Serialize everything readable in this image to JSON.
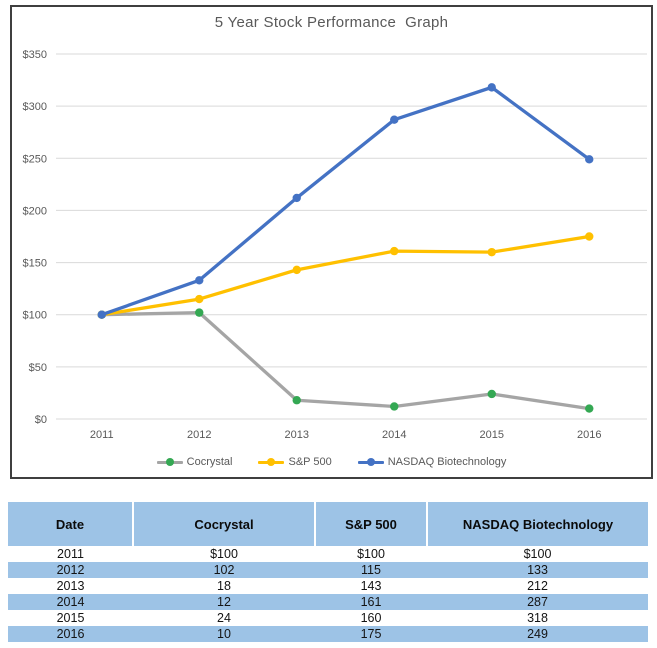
{
  "chart_data": {
    "type": "line",
    "title": "5 Year Stock Performance  Graph",
    "categories": [
      "2011",
      "2012",
      "2013",
      "2014",
      "2015",
      "2016"
    ],
    "series": [
      {
        "name": "Cocrystal",
        "values": [
          100,
          102,
          18,
          12,
          24,
          10
        ],
        "line_color": "#A5A5A5",
        "marker_color": "#34A853"
      },
      {
        "name": "S&P 500",
        "values": [
          100,
          115,
          143,
          161,
          160,
          175
        ],
        "line_color": "#FFC000",
        "marker_color": "#FFC000"
      },
      {
        "name": "NASDAQ Biotechnology",
        "values": [
          100,
          133,
          212,
          287,
          318,
          249
        ],
        "line_color": "#4472C4",
        "marker_color": "#4472C4"
      }
    ],
    "y_ticks": [
      0,
      50,
      100,
      150,
      200,
      250,
      300,
      350
    ],
    "y_tick_labels": [
      "$0",
      "$50",
      "$100",
      "$150",
      "$200",
      "$250",
      "$300",
      "$350"
    ],
    "ylim": [
      0,
      350
    ],
    "grid": true,
    "legend_position": "bottom"
  },
  "table": {
    "columns": [
      "Date",
      "Cocrystal",
      "S&P 500",
      "NASDAQ Biotechnology"
    ],
    "rows": [
      [
        "2011",
        "$100",
        "$100",
        "$100"
      ],
      [
        "2012",
        "102",
        "115",
        "133"
      ],
      [
        "2013",
        "18",
        "143",
        "212"
      ],
      [
        "2014",
        "12",
        "161",
        "287"
      ],
      [
        "2015",
        "24",
        "160",
        "318"
      ],
      [
        "2016",
        "10",
        "175",
        "249"
      ]
    ]
  },
  "colors": {
    "table_header_blue": "#9DC3E6",
    "table_band_blue": "#9DC3E6",
    "gridline": "#D9D9D9",
    "axis_text": "#595959",
    "chart_border": "#3F3F3F"
  }
}
